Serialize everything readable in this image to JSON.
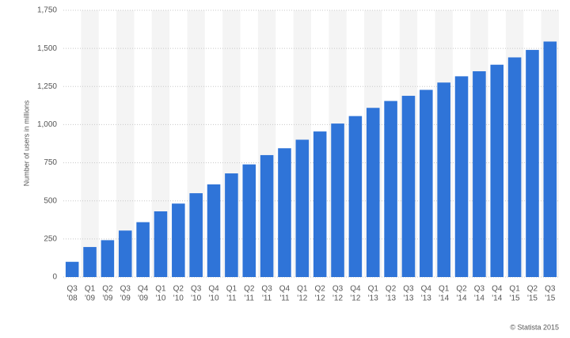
{
  "chart_data": {
    "type": "bar",
    "y_label": "Number of users in millions",
    "source": "© Statista 2015",
    "categories": [
      [
        "Q3",
        "'08"
      ],
      [
        "Q1",
        "'09"
      ],
      [
        "Q2",
        "'09"
      ],
      [
        "Q3",
        "'09"
      ],
      [
        "Q4",
        "'09"
      ],
      [
        "Q1",
        "'10"
      ],
      [
        "Q2",
        "'10"
      ],
      [
        "Q3",
        "'10"
      ],
      [
        "Q4",
        "'10"
      ],
      [
        "Q1",
        "'11"
      ],
      [
        "Q2",
        "'11"
      ],
      [
        "Q3",
        "'11"
      ],
      [
        "Q4",
        "'11"
      ],
      [
        "Q1",
        "'12"
      ],
      [
        "Q2",
        "'12"
      ],
      [
        "Q3",
        "'12"
      ],
      [
        "Q4",
        "'12"
      ],
      [
        "Q1",
        "'13"
      ],
      [
        "Q2",
        "'13"
      ],
      [
        "Q3",
        "'13"
      ],
      [
        "Q4",
        "'13"
      ],
      [
        "Q1",
        "'14"
      ],
      [
        "Q2",
        "'14"
      ],
      [
        "Q3",
        "'14"
      ],
      [
        "Q4",
        "'14"
      ],
      [
        "Q1",
        "'15"
      ],
      [
        "Q2",
        "'15"
      ],
      [
        "Q3",
        "'15"
      ]
    ],
    "values": [
      100,
      197,
      242,
      305,
      360,
      431,
      482,
      550,
      608,
      680,
      739,
      800,
      845,
      901,
      955,
      1007,
      1056,
      1110,
      1155,
      1189,
      1228,
      1276,
      1317,
      1350,
      1393,
      1441,
      1490,
      1545
    ],
    "color": "#2f74d8",
    "ylim": [
      0,
      1750
    ],
    "yticks": [
      0,
      250,
      500,
      750,
      {
        "value": 1000,
        "label": "1,000"
      },
      {
        "value": 1250,
        "label": "1,250"
      },
      {
        "value": 1500,
        "label": "1,500"
      },
      {
        "value": 1750,
        "label": "1,750"
      }
    ],
    "grid": true
  }
}
